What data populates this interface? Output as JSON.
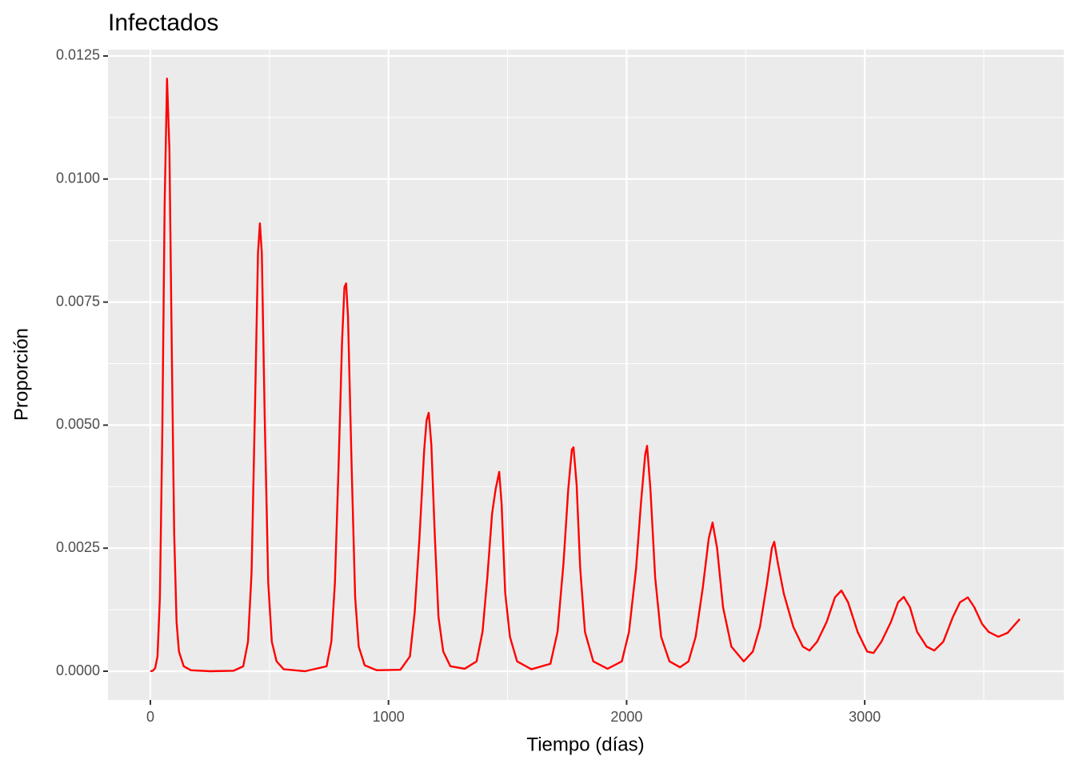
{
  "chart_data": {
    "type": "line",
    "title": "Infectados",
    "x_label": "Tiempo (días)",
    "y_label": "Proporción",
    "color": "#ff0000",
    "x": [
      0,
      10,
      20,
      30,
      40,
      50,
      60,
      70,
      80,
      90,
      100,
      110,
      120,
      140,
      170,
      250,
      350,
      390,
      410,
      425,
      440,
      452,
      460,
      468,
      480,
      495,
      510,
      530,
      560,
      650,
      740,
      760,
      775,
      790,
      805,
      815,
      822,
      830,
      845,
      860,
      875,
      900,
      950,
      1050,
      1090,
      1110,
      1130,
      1150,
      1160,
      1169,
      1180,
      1195,
      1210,
      1230,
      1260,
      1320,
      1370,
      1395,
      1415,
      1435,
      1450,
      1465,
      1475,
      1490,
      1510,
      1540,
      1600,
      1680,
      1710,
      1735,
      1755,
      1770,
      1777,
      1790,
      1805,
      1825,
      1860,
      1920,
      1980,
      2010,
      2040,
      2060,
      2078,
      2086,
      2100,
      2120,
      2145,
      2180,
      2224,
      2260,
      2290,
      2320,
      2345,
      2361,
      2380,
      2405,
      2440,
      2492,
      2530,
      2560,
      2590,
      2610,
      2620,
      2635,
      2660,
      2700,
      2740,
      2768,
      2800,
      2840,
      2875,
      2902,
      2930,
      2970,
      3010,
      3037,
      3070,
      3110,
      3140,
      3164,
      3190,
      3220,
      3260,
      3292,
      3330,
      3370,
      3400,
      3433,
      3460,
      3493,
      3520,
      3561,
      3600,
      3651
    ],
    "values": [
      0,
      1e-05,
      6e-05,
      0.0003,
      0.0015,
      0.0048,
      0.0095,
      0.01204,
      0.0106,
      0.0065,
      0.0028,
      0.001,
      0.0004,
      0.0001,
      2e-05,
      0,
      1e-05,
      0.0001,
      0.0006,
      0.002,
      0.0055,
      0.0085,
      0.0091,
      0.0085,
      0.0052,
      0.0018,
      0.0006,
      0.0002,
      4e-05,
      0,
      0.0001,
      0.0006,
      0.0018,
      0.0041,
      0.0067,
      0.0078,
      0.00788,
      0.0072,
      0.0042,
      0.0015,
      0.0005,
      0.00012,
      2e-05,
      3e-05,
      0.0003,
      0.0012,
      0.0027,
      0.0045,
      0.0051,
      0.00525,
      0.0046,
      0.0027,
      0.0011,
      0.0004,
      0.0001,
      5e-05,
      0.0002,
      0.0008,
      0.0019,
      0.0032,
      0.0037,
      0.00405,
      0.0034,
      0.0016,
      0.0007,
      0.0002,
      4e-05,
      0.00015,
      0.0008,
      0.0022,
      0.0037,
      0.0045,
      0.00455,
      0.0038,
      0.0021,
      0.0008,
      0.0002,
      5e-05,
      0.0002,
      0.0008,
      0.0021,
      0.0034,
      0.0044,
      0.00458,
      0.0037,
      0.0019,
      0.0007,
      0.0002,
      8e-05,
      0.0002,
      0.0007,
      0.0017,
      0.0027,
      0.00302,
      0.0025,
      0.0013,
      0.0005,
      0.0002,
      0.0004,
      0.0009,
      0.0018,
      0.0025,
      0.00263,
      0.0022,
      0.00158,
      0.0009,
      0.0005,
      0.00042,
      0.0006,
      0.001,
      0.0015,
      0.00164,
      0.0014,
      0.0008,
      0.0004,
      0.00037,
      0.0006,
      0.001,
      0.0014,
      0.00151,
      0.0013,
      0.0008,
      0.0005,
      0.00042,
      0.0006,
      0.0011,
      0.0014,
      0.0015,
      0.0013,
      0.00096,
      0.0008,
      0.0007,
      0.00078,
      0.00106
    ],
    "xlim": [
      -178,
      3836
    ],
    "ylim": [
      -0.000585,
      0.01263
    ],
    "xticks": [
      0,
      1000,
      2000,
      3000
    ],
    "yticks": [
      {
        "value": 0,
        "label": "0.0000"
      },
      0.0025,
      {
        "value": 0.005,
        "label": "0.0050"
      },
      0.0075,
      {
        "value": 0.01,
        "label": "0.0100"
      },
      0.0125
    ],
    "x_minor_grid": [
      500,
      1500,
      2500,
      3500
    ],
    "y_minor_grid": [
      0.00125,
      0.00375,
      0.00625,
      0.00875,
      0.01125
    ],
    "grid": true
  }
}
